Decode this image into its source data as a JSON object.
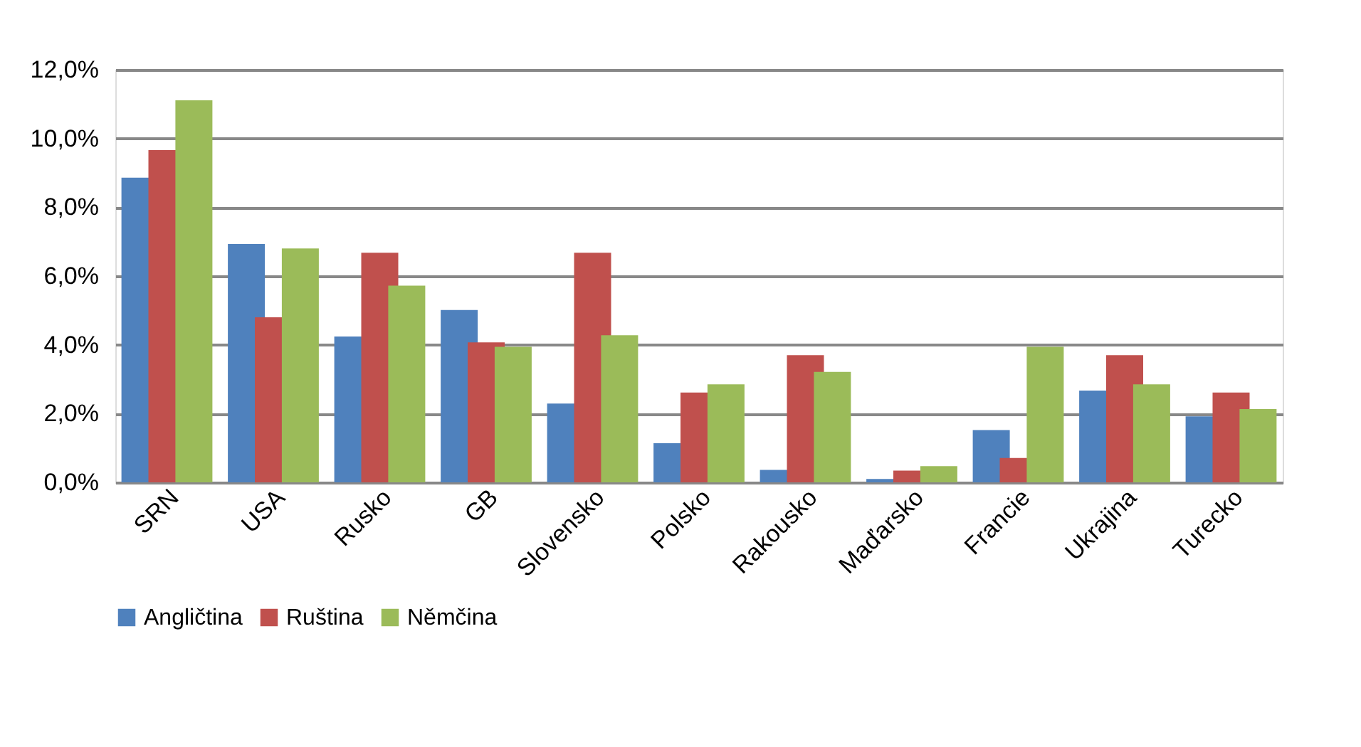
{
  "chart_data": {
    "type": "bar",
    "categories": [
      "SRN",
      "USA",
      "Rusko",
      "GB",
      "Slovensko",
      "Polsko",
      "Rakousko",
      "Maďarsko",
      "Francie",
      "Ukrajina",
      "Turecko"
    ],
    "series": [
      {
        "name": "Angličtina",
        "color": "#4f81bd",
        "values": [
          8.86,
          6.93,
          4.24,
          5.01,
          2.29,
          1.14,
          0.36,
          0.1,
          1.52,
          2.67,
          1.92
        ]
      },
      {
        "name": "Ruština",
        "color": "#c0504d",
        "values": [
          9.66,
          4.8,
          6.68,
          4.07,
          6.68,
          2.61,
          3.7,
          0.34,
          0.71,
          3.7,
          2.61
        ]
      },
      {
        "name": "Němčina",
        "color": "#9bbb59",
        "values": [
          11.11,
          6.8,
          5.72,
          3.94,
          4.28,
          2.85,
          3.21,
          0.47,
          3.94,
          2.85,
          2.13
        ]
      }
    ],
    "ylim": [
      0,
      12
    ],
    "yticks": [
      {
        "value": 0,
        "label": "0,0%"
      },
      {
        "value": 2,
        "label": "2,0%"
      },
      {
        "value": 4,
        "label": "4,0%"
      },
      {
        "value": 6,
        "label": "6,0%"
      },
      {
        "value": 8,
        "label": "8,0%"
      },
      {
        "value": 10,
        "label": "10,0%"
      },
      {
        "value": 12,
        "label": "12,0%"
      }
    ],
    "grid": "y",
    "legend": "bottom"
  }
}
